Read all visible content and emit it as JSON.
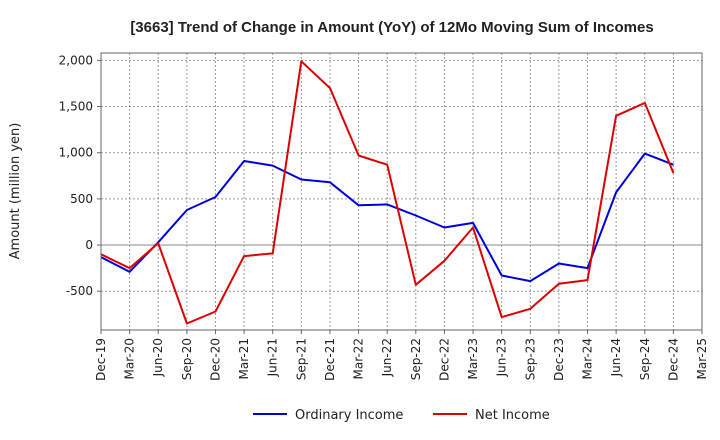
{
  "chart_data": {
    "type": "line",
    "title": "[3663]  Trend of Change in Amount (YoY) of 12Mo Moving Sum of Incomes",
    "ylabel": "Amount (million yen)",
    "xlabel": "",
    "ylim": [
      -920,
      2080
    ],
    "yticks": [
      2000,
      1500,
      1000,
      500,
      0,
      -500
    ],
    "ytick_labels": [
      "2,000",
      "1,500",
      "1,000",
      "500",
      "0",
      "-500"
    ],
    "categories": [
      "Dec-19",
      "Mar-20",
      "Jun-20",
      "Sep-20",
      "Dec-20",
      "Mar-21",
      "Jun-21",
      "Sep-21",
      "Dec-21",
      "Mar-22",
      "Jun-22",
      "Sep-22",
      "Dec-22",
      "Mar-23",
      "Jun-23",
      "Sep-23",
      "Dec-23",
      "Mar-24",
      "Jun-24",
      "Sep-24",
      "Dec-24",
      "Mar-25"
    ],
    "series": [
      {
        "name": "Ordinary Income",
        "color": "#0000dd",
        "values": [
          -130,
          -290,
          30,
          380,
          520,
          910,
          860,
          710,
          680,
          430,
          440,
          320,
          190,
          240,
          -330,
          -390,
          -200,
          -250,
          570,
          990,
          870,
          null
        ]
      },
      {
        "name": "Net Income",
        "color": "#dd0000",
        "values": [
          -100,
          -250,
          20,
          -850,
          -720,
          -120,
          -90,
          1990,
          1700,
          970,
          870,
          -430,
          -170,
          190,
          -780,
          -690,
          -420,
          -380,
          1400,
          1540,
          780,
          null
        ]
      }
    ],
    "grid": true,
    "legend_position": "bottom-center"
  }
}
